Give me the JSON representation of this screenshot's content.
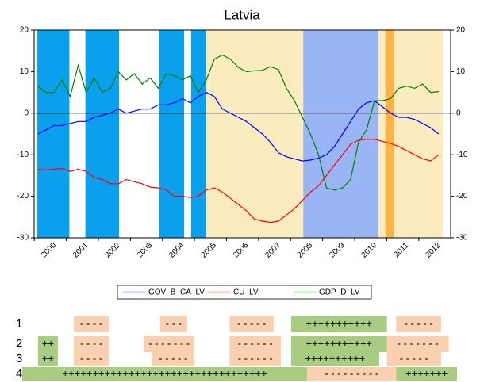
{
  "chart_data": {
    "type": "line",
    "title": "Latvia",
    "x": [
      1999.625,
      1999.875,
      2000.125,
      2000.375,
      2000.625,
      2000.875,
      2001.125,
      2001.375,
      2001.625,
      2001.875,
      2002.125,
      2002.375,
      2002.625,
      2002.875,
      2003.125,
      2003.375,
      2003.625,
      2003.875,
      2004.125,
      2004.375,
      2004.625,
      2004.875,
      2005.125,
      2005.375,
      2005.625,
      2005.875,
      2006.125,
      2006.375,
      2006.625,
      2006.875,
      2007.125,
      2007.375,
      2007.625,
      2007.875,
      2008.125,
      2008.375,
      2008.625,
      2008.875,
      2009.125,
      2009.375,
      2009.625,
      2009.875,
      2010.125,
      2010.375,
      2010.625,
      2010.875,
      2011.125,
      2011.375,
      2011.625,
      2011.875,
      2012.125
    ],
    "series": [
      {
        "name": "GOV_B_CA_LV",
        "color": "#0000ff",
        "values": [
          -5,
          -4,
          -3,
          -3,
          -2.5,
          -2,
          -2,
          -1,
          -0.5,
          0,
          1,
          0,
          0.5,
          1,
          1,
          2,
          2,
          2.5,
          3.5,
          2.5,
          4,
          5,
          4,
          1,
          0,
          -1,
          -2,
          -3.5,
          -5,
          -7,
          -9.5,
          -10.5,
          -11,
          -11.5,
          -11.3,
          -10.8,
          -10,
          -8,
          -5,
          -2,
          1,
          2.5,
          3,
          1.5,
          0,
          -1,
          -1,
          -1.5,
          -2.5,
          -3.5,
          -5
        ]
      },
      {
        "name": "CU_LV",
        "color": "#ff0000",
        "values": [
          -13.5,
          -13.7,
          -13.5,
          -13.3,
          -14,
          -13.5,
          -14,
          -15.5,
          -16,
          -17,
          -17,
          -16,
          -16.5,
          -17,
          -17.8,
          -18,
          -18.5,
          -20,
          -20,
          -20.3,
          -20,
          -18.5,
          -18,
          -19,
          -20.5,
          -22,
          -23.5,
          -25.5,
          -26,
          -26.3,
          -26,
          -24.5,
          -23,
          -21,
          -19,
          -17.5,
          -15,
          -12.5,
          -10,
          -7.5,
          -6.5,
          -6.3,
          -6.3,
          -6.8,
          -7.3,
          -8,
          -9,
          -10,
          -11,
          -11.5,
          -10
        ]
      },
      {
        "name": "GDP_D_LV",
        "color": "#008000",
        "values": [
          6.5,
          5,
          5,
          8,
          4,
          11.5,
          5,
          8.5,
          5,
          6,
          10,
          8,
          9.5,
          7,
          8.5,
          6,
          9.5,
          9,
          8,
          9,
          5,
          8,
          13,
          14,
          13,
          11,
          10,
          10.2,
          10.3,
          11.2,
          10.5,
          6,
          3,
          -1,
          -5,
          -10,
          -18,
          -18.5,
          -18,
          -16,
          -7,
          -4,
          3,
          3,
          3.5,
          6,
          6.5,
          6,
          7,
          5,
          5.2
        ]
      }
    ],
    "xlim": [
      1999.5,
      2012.5
    ],
    "xticks": [
      2000,
      2001,
      2002,
      2003,
      2004,
      2005,
      2006,
      2007,
      2008,
      2009,
      2010,
      2011,
      2012
    ],
    "ylim": [
      -30,
      20
    ],
    "yticks": [
      -30,
      -20,
      -10,
      0,
      10,
      20
    ],
    "regions": [
      {
        "start": 1999.6,
        "end": 2000.6,
        "color": "#0aa0ee"
      },
      {
        "start": 2001.1,
        "end": 2002.15,
        "color": "#0aa0ee"
      },
      {
        "start": 2003.39,
        "end": 2004.18,
        "color": "#0aa0ee"
      },
      {
        "start": 2004.4,
        "end": 2004.87,
        "color": "#0aa0ee"
      },
      {
        "start": 2004.87,
        "end": 2007.9,
        "color": "#fbecc0"
      },
      {
        "start": 2007.9,
        "end": 2010.24,
        "color": "#99b5f5"
      },
      {
        "start": 2010.24,
        "end": 2010.46,
        "color": "#fbecc0"
      },
      {
        "start": 2010.46,
        "end": 2010.74,
        "color": "#ffb347"
      },
      {
        "start": 2010.74,
        "end": 2012.25,
        "color": "#fbecc0"
      }
    ],
    "sign_table": [
      {
        "label": "1",
        "segments": [
          {
            "start": 2000.74,
            "end": 2001.83,
            "text": "- - - -",
            "color": "#fbd0b0"
          },
          {
            "start": 2003.43,
            "end": 2004.28,
            "text": "- - -",
            "color": "#fbd0b0"
          },
          {
            "start": 2005.6,
            "end": 2006.98,
            "text": "- - - - -",
            "color": "#fbd0b0"
          },
          {
            "start": 2007.52,
            "end": 2010.51,
            "text": "+++++++++++",
            "color": "#a8cc80"
          },
          {
            "start": 2010.8,
            "end": 2012.2,
            "text": "- - - - -",
            "color": "#fbd0b0"
          }
        ]
      },
      {
        "label": "2",
        "segments": [
          {
            "start": 1999.62,
            "end": 2000.24,
            "text": "++",
            "color": "#a8cc80"
          },
          {
            "start": 2000.74,
            "end": 2001.83,
            "text": "- - - -",
            "color": "#fbd0b0"
          },
          {
            "start": 2002.93,
            "end": 2004.5,
            "text": "- - - - - - -",
            "color": "#fbd0b0"
          },
          {
            "start": 2005.6,
            "end": 2007.2,
            "text": "- - - - - -",
            "color": "#fbd0b0"
          },
          {
            "start": 2007.52,
            "end": 2010.51,
            "text": "+++++++++++",
            "color": "#a8cc80"
          },
          {
            "start": 2010.51,
            "end": 2012.44,
            "text": "- - - - - - -",
            "color": "#fbd0b0"
          }
        ]
      },
      {
        "label": "3",
        "segments": [
          {
            "start": 1999.62,
            "end": 2000.24,
            "text": "++",
            "color": "#a8cc80"
          },
          {
            "start": 2000.74,
            "end": 2001.83,
            "text": "- - - -",
            "color": "#fbd0b0"
          },
          {
            "start": 2003.18,
            "end": 2004.5,
            "text": "- - - - -",
            "color": "#fbd0b0"
          },
          {
            "start": 2005.6,
            "end": 2007.2,
            "text": "- - - - - -",
            "color": "#fbd0b0"
          },
          {
            "start": 2007.52,
            "end": 2010.27,
            "text": "++++++++++",
            "color": "#a8cc80"
          },
          {
            "start": 2010.51,
            "end": 2012.2,
            "text": "- - - - -",
            "color": "#fbd0b0"
          }
        ]
      },
      {
        "label": "4",
        "segments": [
          {
            "start": 1999.13,
            "end": 2008.02,
            "text": "++++++++++++++++++++++++++++++++++",
            "color": "#a8cc80"
          },
          {
            "start": 2008.02,
            "end": 2010.8,
            "text": "- - - - - - - - -",
            "color": "#fbd0b0"
          },
          {
            "start": 2010.8,
            "end": 2012.7,
            "text": "+++++++",
            "color": "#a8cc80"
          }
        ]
      }
    ]
  }
}
